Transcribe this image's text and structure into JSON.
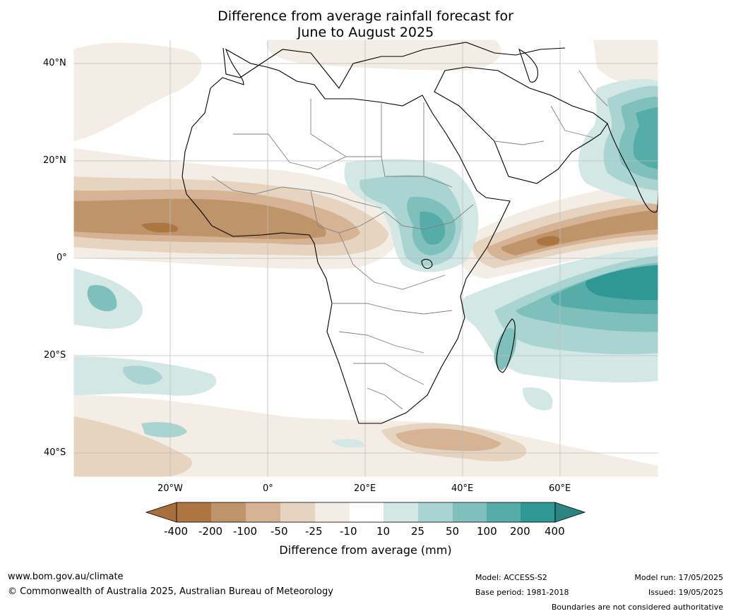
{
  "title_line1": "Difference from average rainfall forecast for",
  "title_line2": "June to August 2025",
  "lat_labels": [
    "40°N",
    "20°N",
    "0°",
    "20°S",
    "40°S"
  ],
  "lon_labels": [
    "20°W",
    "0°",
    "20°E",
    "40°E",
    "60°E"
  ],
  "colorbar": {
    "ticks": [
      "-400",
      "-200",
      "-100",
      "-50",
      "-25",
      "-10",
      "10",
      "25",
      "50",
      "100",
      "200",
      "400"
    ],
    "colors": [
      "#a76f3b",
      "#ad7541",
      "#c0946b",
      "#d5b394",
      "#e6d3c0",
      "#f3ede5",
      "#ffffff",
      "#d3e8e5",
      "#a9d4d1",
      "#7fc0bd",
      "#56aca8",
      "#2f9894",
      "#2a8580"
    ],
    "label": "Difference from average (mm)"
  },
  "footer": {
    "website": "www.bom.gov.au/climate",
    "copyright": "© Commonwealth of Australia 2025, Australian Bureau of Meteorology",
    "model": "Model: ACCESS-S2",
    "base_period": "Base period: 1981-2018",
    "model_run": "Model run: 17/05/2025",
    "issued": "Issued: 19/05/2025",
    "disclaimer": "Boundaries are not considered authoritative"
  }
}
